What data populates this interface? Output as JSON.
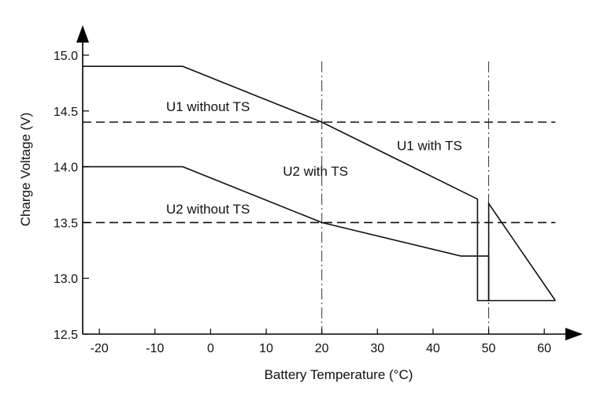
{
  "chart_data": {
    "type": "line",
    "title": "",
    "xlabel": "Battery Temperature (°C)",
    "ylabel": "Charge Voltage (V)",
    "xlim": [
      -23,
      62
    ],
    "ylim": [
      12.5,
      15.0
    ],
    "xticks": [
      -20,
      -10,
      0,
      10,
      20,
      30,
      40,
      50,
      60
    ],
    "xtick_labels": [
      "-20",
      "-10",
      "0",
      "10",
      "20",
      "30",
      "40",
      "50",
      "60"
    ],
    "yticks": [
      12.5,
      13.0,
      13.5,
      14.0,
      14.5,
      15.0
    ],
    "ytick_labels": [
      "12.5",
      "13.0",
      "13.5",
      "14.0",
      "14.5",
      "15.0"
    ],
    "grid": false,
    "series": [
      {
        "id": "u1-with-ts",
        "label": "U1 with TS",
        "style": "solid",
        "x": [
          -23,
          -5,
          20,
          48,
          48,
          50,
          50,
          62
        ],
        "y": [
          14.9,
          14.9,
          14.4,
          13.71,
          12.8,
          12.8,
          13.67,
          12.8
        ]
      },
      {
        "id": "u2-with-ts",
        "label": "U2 with TS",
        "style": "solid",
        "x": [
          -23,
          -5,
          20,
          45,
          50,
          50,
          62
        ],
        "y": [
          14.0,
          14.0,
          13.5,
          13.2,
          13.2,
          12.8,
          12.8
        ]
      },
      {
        "id": "u1-without-ts",
        "label": "U1 without TS",
        "style": "dashed",
        "x": [
          -23,
          62
        ],
        "y": [
          14.4,
          14.4
        ]
      },
      {
        "id": "u2-without-ts",
        "label": "U2 without TS",
        "style": "dashed",
        "x": [
          -23,
          62
        ],
        "y": [
          13.5,
          13.5
        ]
      }
    ],
    "reference_lines": [
      {
        "axis": "x",
        "value": 20,
        "style": "dash-dot"
      },
      {
        "axis": "x",
        "value": 50,
        "style": "dash-dot"
      }
    ],
    "annotations": [
      {
        "text": "U1 without TS",
        "x": -8,
        "y": 14.5
      },
      {
        "text": "U1 with TS",
        "x": 33.5,
        "y": 14.15
      },
      {
        "text": "U2 with TS",
        "x": 13,
        "y": 13.92
      },
      {
        "text": "U2 without TS",
        "x": -8,
        "y": 13.58
      }
    ]
  }
}
